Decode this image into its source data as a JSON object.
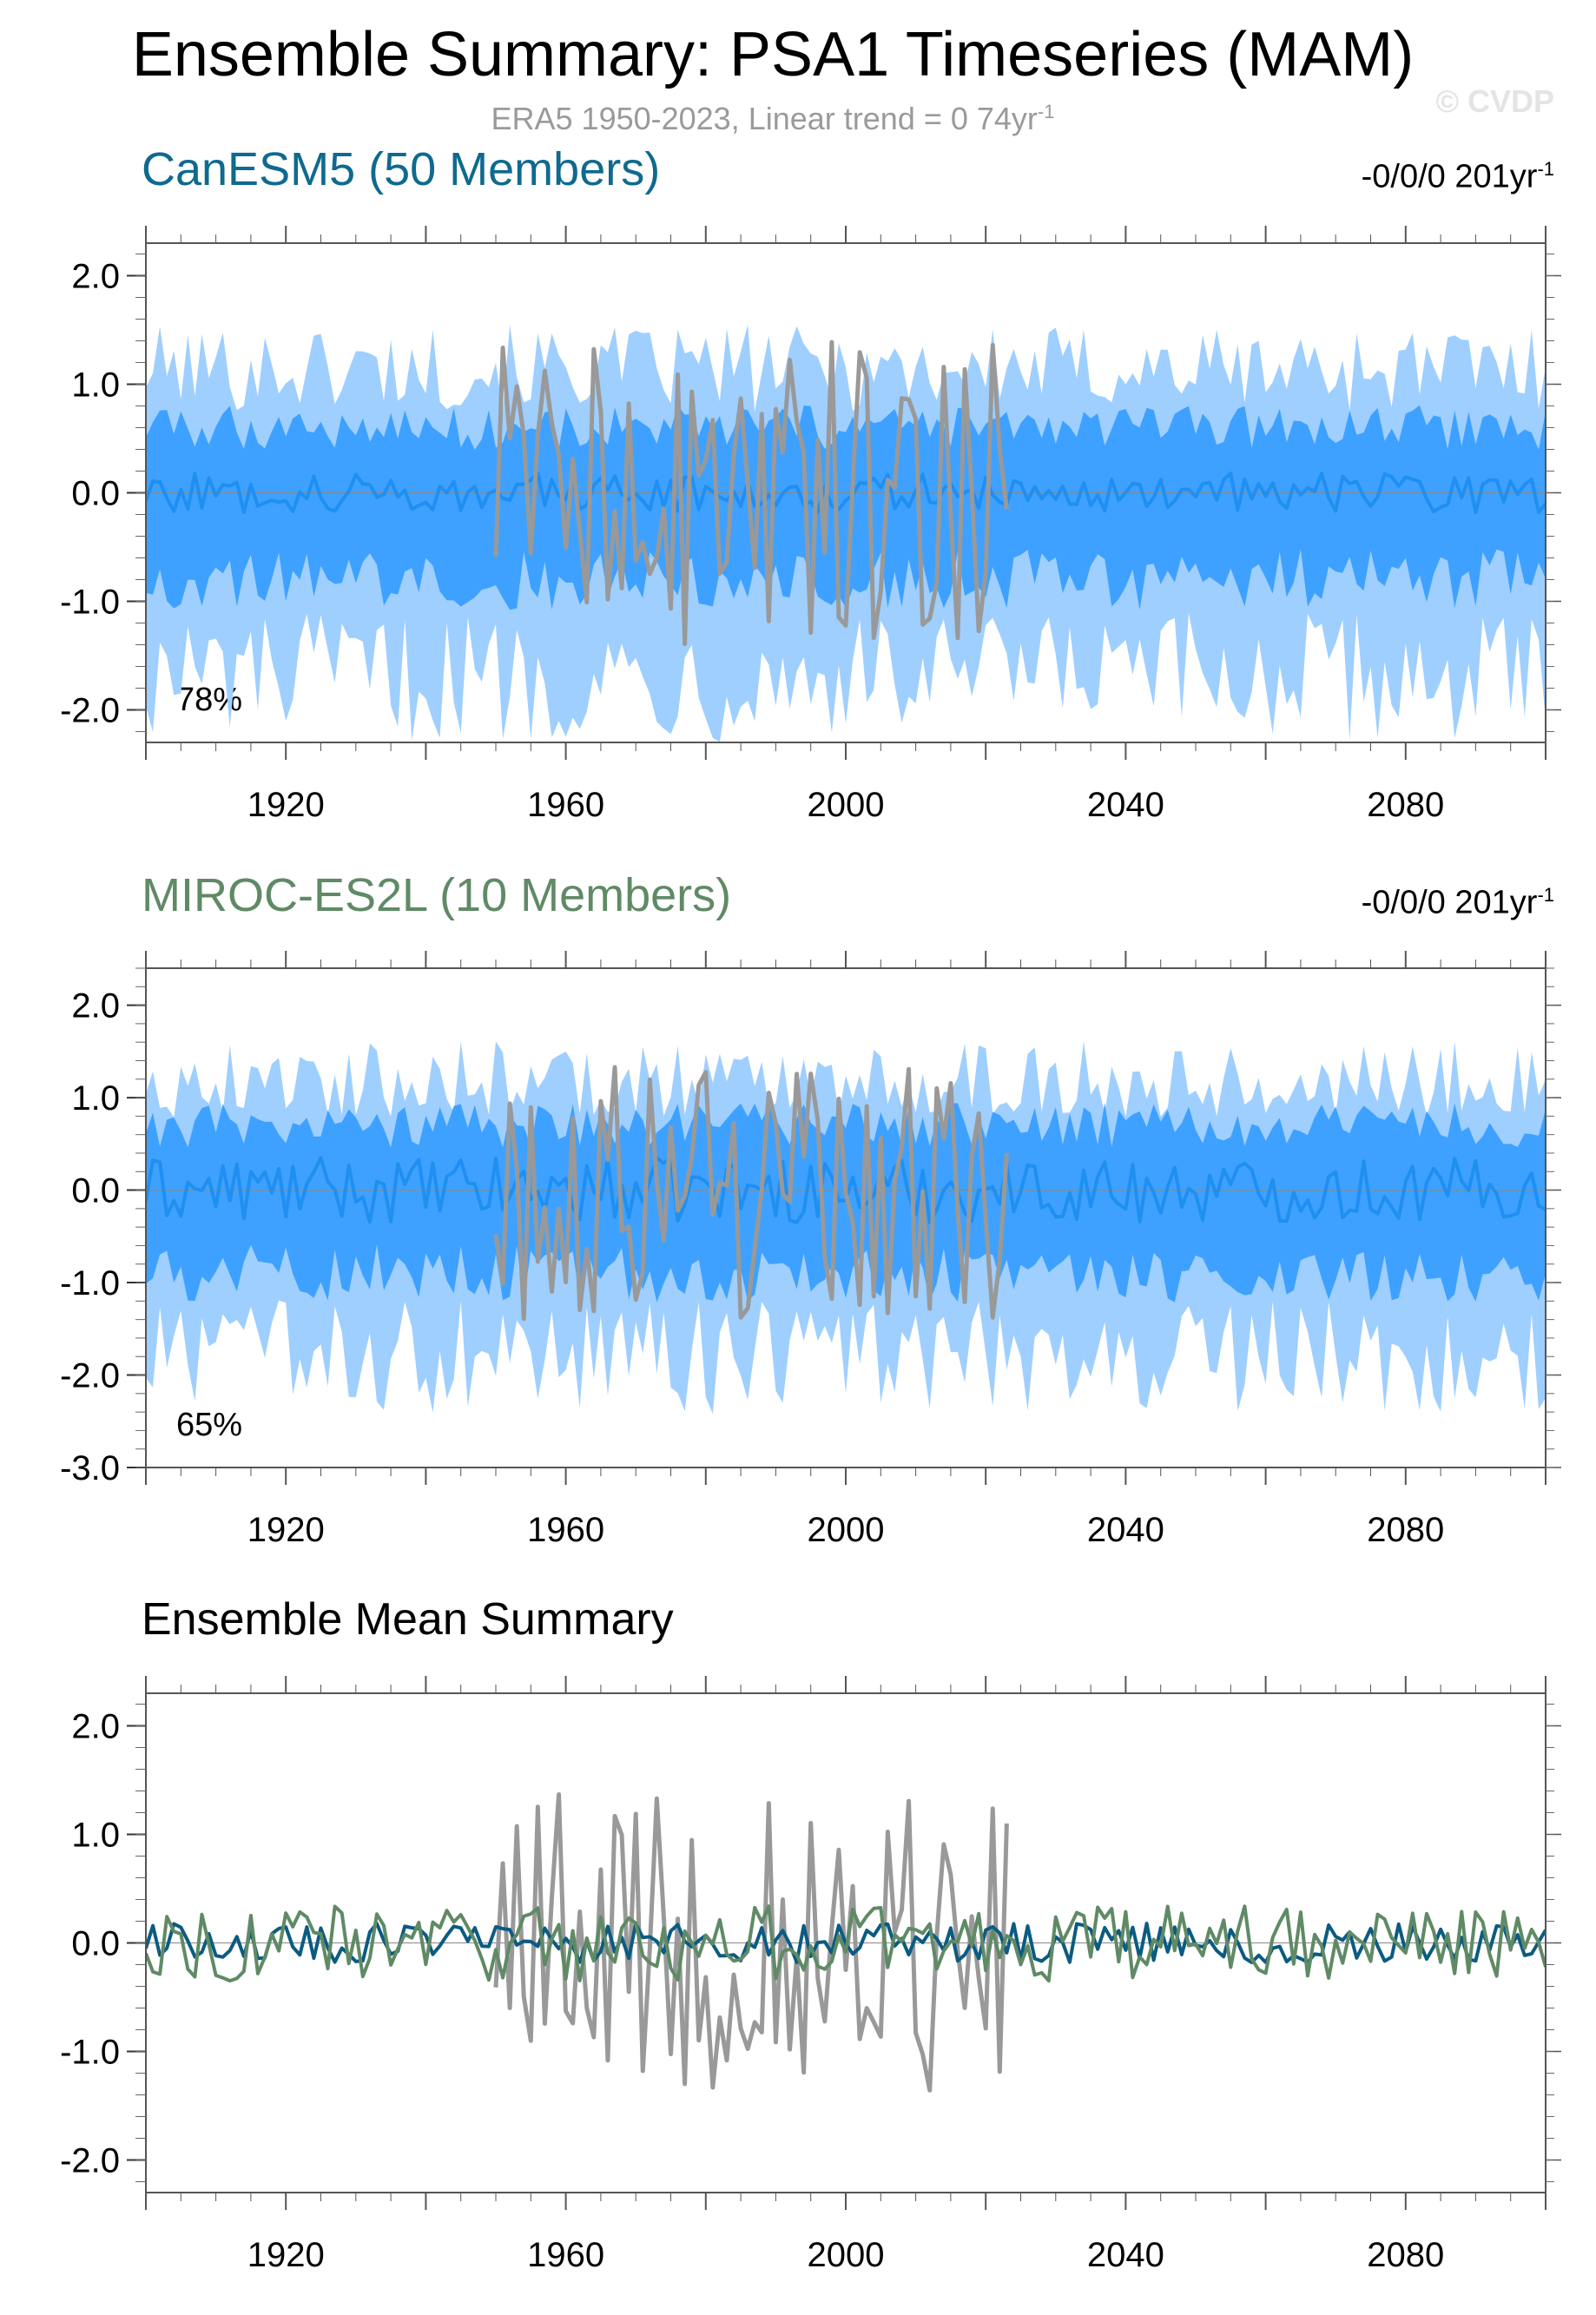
{
  "header": {
    "title": "Ensemble Summary: PSA1 Timeseries (MAM)",
    "subtitle_main": "ERA5 1950-2023, Linear trend = 0 74yr",
    "subtitle_sup": "-1",
    "watermark": "© CVDP"
  },
  "colors": {
    "obs": "#999999",
    "band_outer": "#9fcfff",
    "band_inner": "#3ea1ff",
    "canesm5_mean": "#1f8ff2",
    "canesm5_title": "#0e6a8f",
    "miroc_title": "#5f8a65",
    "summary_canesm5": "#0b5b82",
    "summary_miroc": "#5f8a65"
  },
  "panels": [
    {
      "title": "CanESM5 (50 Members)",
      "trend_main": "-0/0/0 201yr",
      "trend_sup": "-1",
      "percent": "78%"
    },
    {
      "title": "MIROC-ES2L (10 Members)",
      "trend_main": "-0/0/0 201yr",
      "trend_sup": "-1",
      "percent": "65%"
    },
    {
      "title": "Ensemble Mean Summary"
    }
  ],
  "chart_data": [
    {
      "type": "area",
      "title": "CanESM5 (50 Members)",
      "xlim": [
        1900,
        2100
      ],
      "ylim": [
        -2.3,
        2.3
      ],
      "x_ticks": [
        1920,
        1960,
        2000,
        2040,
        2080
      ],
      "y_ticks": [
        2.0,
        1.0,
        0.0,
        -1.0,
        -2.0
      ],
      "y_tick_labels": [
        "2.0",
        "1.0",
        "0.0",
        "-1.0",
        "-2.0"
      ],
      "series": [
        {
          "role": "outer_band",
          "x_range": [
            1900,
            2100
          ],
          "upper_level": 1.15,
          "lower_level": -1.7
        },
        {
          "role": "inner_band",
          "x_range": [
            1900,
            2100
          ],
          "upper_level": 0.6,
          "lower_level": -0.8
        },
        {
          "role": "ensemble_mean",
          "x_range": [
            1900,
            2100
          ],
          "level": 0.0,
          "amplitude": 0.18
        },
        {
          "role": "observations",
          "x_range": [
            1950,
            2023
          ],
          "level": 0.0,
          "amplitude": 1.4
        }
      ]
    },
    {
      "type": "area",
      "title": "MIROC-ES2L (10 Members)",
      "xlim": [
        1900,
        2100
      ],
      "ylim": [
        -3.0,
        2.4
      ],
      "x_ticks": [
        1920,
        1960,
        2000,
        2040,
        2080
      ],
      "y_ticks": [
        2.0,
        1.0,
        0.0,
        -1.0,
        -2.0,
        -3.0
      ],
      "y_tick_labels": [
        "2.0",
        "1.0",
        "0.0",
        "-1.0",
        "-2.0",
        "-3.0"
      ],
      "series": [
        {
          "role": "outer_band",
          "x_range": [
            1900,
            2100
          ],
          "upper_level": 1.2,
          "lower_level": -1.8
        },
        {
          "role": "inner_band",
          "x_range": [
            1900,
            2100
          ],
          "upper_level": 0.7,
          "lower_level": -0.9
        },
        {
          "role": "ensemble_mean",
          "x_range": [
            1900,
            2100
          ],
          "level": 0.0,
          "amplitude": 0.35
        },
        {
          "role": "observations",
          "x_range": [
            1950,
            2023
          ],
          "level": 0.0,
          "amplitude": 1.4
        }
      ]
    },
    {
      "type": "line",
      "title": "Ensemble Mean Summary",
      "xlim": [
        1900,
        2100
      ],
      "ylim": [
        -2.3,
        2.3
      ],
      "x_ticks": [
        1920,
        1960,
        2000,
        2040,
        2080
      ],
      "y_ticks": [
        2.0,
        1.0,
        0.0,
        -1.0,
        -2.0
      ],
      "y_tick_labels": [
        "2.0",
        "1.0",
        "0.0",
        "-1.0",
        "-2.0"
      ],
      "series": [
        {
          "role": "observations",
          "x_range": [
            1950,
            2023
          ],
          "level": 0.0,
          "amplitude": 1.4
        },
        {
          "role": "canesm5_mean",
          "x_range": [
            1900,
            2100
          ],
          "level": 0.0,
          "amplitude": 0.18
        },
        {
          "role": "miroc_mean",
          "x_range": [
            1900,
            2100
          ],
          "level": 0.0,
          "amplitude": 0.35
        }
      ]
    }
  ]
}
